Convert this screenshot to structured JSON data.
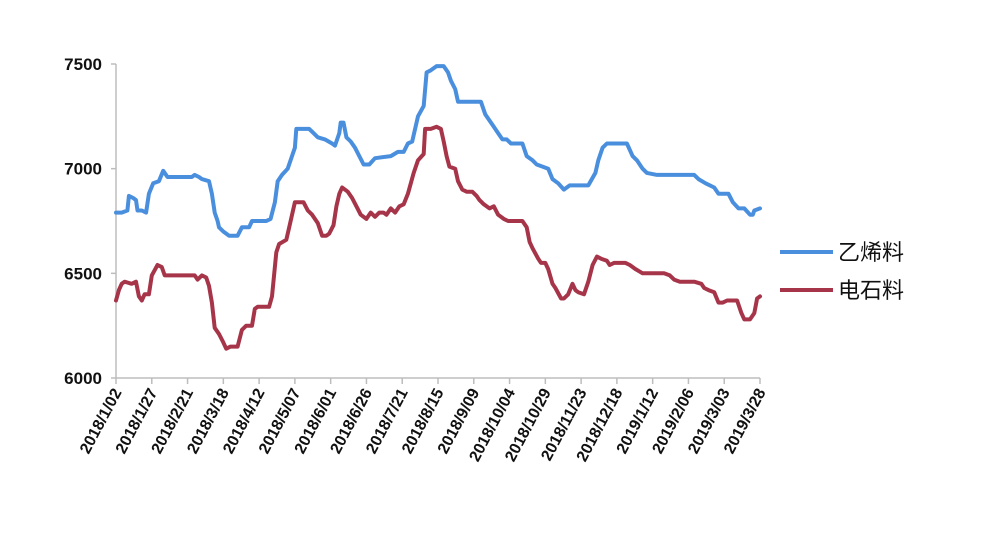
{
  "chart_data": {
    "type": "line",
    "title": "",
    "xlabel": "",
    "ylabel": "",
    "ylim": [
      6000,
      7500
    ],
    "yticks": [
      6000,
      6500,
      7000,
      7500
    ],
    "x_tick_labels": [
      "2018/1/02",
      "2018/1/27",
      "2018/2/21",
      "2018/3/18",
      "2018/4/12",
      "2018/5/07",
      "2018/6/01",
      "2018/6/26",
      "2018/7/21",
      "2018/8/15",
      "2018/9/09",
      "2018/10/04",
      "2018/10/29",
      "2018/11/23",
      "2018/12/18",
      "2019/1/12",
      "2019/2/06",
      "2019/3/03",
      "2019/3/28"
    ],
    "x_range": [
      "2018-01-02",
      "2019-03-28"
    ],
    "grid": false,
    "legend_position": "right",
    "series": [
      {
        "name": "乙烯料",
        "color": "#4a8fde",
        "points": [
          [
            "2018-01-02",
            6790
          ],
          [
            "2018-01-06",
            6790
          ],
          [
            "2018-01-10",
            6800
          ],
          [
            "2018-01-11",
            6870
          ],
          [
            "2018-01-14",
            6860
          ],
          [
            "2018-01-16",
            6850
          ],
          [
            "2018-01-17",
            6800
          ],
          [
            "2018-01-20",
            6800
          ],
          [
            "2018-01-23",
            6790
          ],
          [
            "2018-01-25",
            6880
          ],
          [
            "2018-01-28",
            6930
          ],
          [
            "2018-02-01",
            6940
          ],
          [
            "2018-02-04",
            6990
          ],
          [
            "2018-02-07",
            6960
          ],
          [
            "2018-02-18",
            6960
          ],
          [
            "2018-02-24",
            6960
          ],
          [
            "2018-02-26",
            6970
          ],
          [
            "2018-03-01",
            6960
          ],
          [
            "2018-03-03",
            6950
          ],
          [
            "2018-03-08",
            6940
          ],
          [
            "2018-03-10",
            6880
          ],
          [
            "2018-03-12",
            6790
          ],
          [
            "2018-03-14",
            6750
          ],
          [
            "2018-03-15",
            6720
          ],
          [
            "2018-03-18",
            6700
          ],
          [
            "2018-03-22",
            6680
          ],
          [
            "2018-03-28",
            6680
          ],
          [
            "2018-03-31",
            6720
          ],
          [
            "2018-04-05",
            6720
          ],
          [
            "2018-04-07",
            6750
          ],
          [
            "2018-04-17",
            6750
          ],
          [
            "2018-04-20",
            6760
          ],
          [
            "2018-04-23",
            6840
          ],
          [
            "2018-04-25",
            6940
          ],
          [
            "2018-04-28",
            6970
          ],
          [
            "2018-05-02",
            7000
          ],
          [
            "2018-05-05",
            7060
          ],
          [
            "2018-05-07",
            7100
          ],
          [
            "2018-05-08",
            7190
          ],
          [
            "2018-05-17",
            7190
          ],
          [
            "2018-05-20",
            7170
          ],
          [
            "2018-05-23",
            7150
          ],
          [
            "2018-05-28",
            7140
          ],
          [
            "2018-06-02",
            7120
          ],
          [
            "2018-06-04",
            7110
          ],
          [
            "2018-06-07",
            7170
          ],
          [
            "2018-06-08",
            7220
          ],
          [
            "2018-06-10",
            7220
          ],
          [
            "2018-06-12",
            7150
          ],
          [
            "2018-06-15",
            7130
          ],
          [
            "2018-06-18",
            7100
          ],
          [
            "2018-06-21",
            7060
          ],
          [
            "2018-06-24",
            7020
          ],
          [
            "2018-06-28",
            7020
          ],
          [
            "2018-07-02",
            7050
          ],
          [
            "2018-07-13",
            7060
          ],
          [
            "2018-07-18",
            7080
          ],
          [
            "2018-07-22",
            7080
          ],
          [
            "2018-07-25",
            7120
          ],
          [
            "2018-07-28",
            7130
          ],
          [
            "2018-08-01",
            7250
          ],
          [
            "2018-08-05",
            7300
          ],
          [
            "2018-08-07",
            7460
          ],
          [
            "2018-08-10",
            7470
          ],
          [
            "2018-08-14",
            7490
          ],
          [
            "2018-08-19",
            7490
          ],
          [
            "2018-08-22",
            7460
          ],
          [
            "2018-08-24",
            7420
          ],
          [
            "2018-08-27",
            7380
          ],
          [
            "2018-08-29",
            7320
          ],
          [
            "2018-09-14",
            7320
          ],
          [
            "2018-09-17",
            7260
          ],
          [
            "2018-09-20",
            7230
          ],
          [
            "2018-09-23",
            7200
          ],
          [
            "2018-09-26",
            7170
          ],
          [
            "2018-09-29",
            7140
          ],
          [
            "2018-10-02",
            7140
          ],
          [
            "2018-10-05",
            7120
          ],
          [
            "2018-10-13",
            7120
          ],
          [
            "2018-10-16",
            7060
          ],
          [
            "2018-10-20",
            7040
          ],
          [
            "2018-10-23",
            7020
          ],
          [
            "2018-10-27",
            7010
          ],
          [
            "2018-10-31",
            7000
          ],
          [
            "2018-11-03",
            6950
          ],
          [
            "2018-11-07",
            6930
          ],
          [
            "2018-11-11",
            6900
          ],
          [
            "2018-11-15",
            6920
          ],
          [
            "2018-11-28",
            6920
          ],
          [
            "2018-12-03",
            6980
          ],
          [
            "2018-12-05",
            7040
          ],
          [
            "2018-12-08",
            7100
          ],
          [
            "2018-12-11",
            7120
          ],
          [
            "2018-12-25",
            7120
          ],
          [
            "2018-12-29",
            7060
          ],
          [
            "2019-01-01",
            7040
          ],
          [
            "2019-01-05",
            7000
          ],
          [
            "2019-01-08",
            6980
          ],
          [
            "2019-01-15",
            6970
          ],
          [
            "2019-01-22",
            6970
          ],
          [
            "2019-02-10",
            6970
          ],
          [
            "2019-02-13",
            6950
          ],
          [
            "2019-02-18",
            6930
          ],
          [
            "2019-02-24",
            6910
          ],
          [
            "2019-02-27",
            6880
          ],
          [
            "2019-03-06",
            6880
          ],
          [
            "2019-03-09",
            6840
          ],
          [
            "2019-03-13",
            6810
          ],
          [
            "2019-03-17",
            6810
          ],
          [
            "2019-03-21",
            6780
          ],
          [
            "2019-03-23",
            6780
          ],
          [
            "2019-03-24",
            6800
          ],
          [
            "2019-03-28",
            6810
          ]
        ]
      },
      {
        "name": "电石料",
        "color": "#a73549",
        "points": [
          [
            "2018-01-02",
            6370
          ],
          [
            "2018-01-04",
            6420
          ],
          [
            "2018-01-06",
            6450
          ],
          [
            "2018-01-08",
            6460
          ],
          [
            "2018-01-13",
            6450
          ],
          [
            "2018-01-16",
            6460
          ],
          [
            "2018-01-18",
            6390
          ],
          [
            "2018-01-20",
            6370
          ],
          [
            "2018-01-22",
            6400
          ],
          [
            "2018-01-25",
            6400
          ],
          [
            "2018-01-27",
            6490
          ],
          [
            "2018-01-31",
            6540
          ],
          [
            "2018-02-03",
            6530
          ],
          [
            "2018-02-05",
            6490
          ],
          [
            "2018-02-07",
            6490
          ],
          [
            "2018-02-26",
            6490
          ],
          [
            "2018-02-28",
            6470
          ],
          [
            "2018-03-03",
            6490
          ],
          [
            "2018-03-06",
            6480
          ],
          [
            "2018-03-08",
            6440
          ],
          [
            "2018-03-10",
            6360
          ],
          [
            "2018-03-12",
            6240
          ],
          [
            "2018-03-15",
            6210
          ],
          [
            "2018-03-18",
            6170
          ],
          [
            "2018-03-20",
            6140
          ],
          [
            "2018-03-23",
            6150
          ],
          [
            "2018-03-28",
            6150
          ],
          [
            "2018-03-31",
            6230
          ],
          [
            "2018-04-03",
            6250
          ],
          [
            "2018-04-07",
            6250
          ],
          [
            "2018-04-09",
            6330
          ],
          [
            "2018-04-11",
            6340
          ],
          [
            "2018-04-19",
            6340
          ],
          [
            "2018-04-21",
            6390
          ],
          [
            "2018-04-24",
            6600
          ],
          [
            "2018-04-26",
            6640
          ],
          [
            "2018-05-01",
            6660
          ],
          [
            "2018-05-03",
            6720
          ],
          [
            "2018-05-07",
            6840
          ],
          [
            "2018-05-13",
            6840
          ],
          [
            "2018-05-16",
            6800
          ],
          [
            "2018-05-19",
            6780
          ],
          [
            "2018-05-23",
            6740
          ],
          [
            "2018-05-26",
            6680
          ],
          [
            "2018-05-29",
            6680
          ],
          [
            "2018-05-31",
            6690
          ],
          [
            "2018-06-03",
            6730
          ],
          [
            "2018-06-05",
            6820
          ],
          [
            "2018-06-07",
            6880
          ],
          [
            "2018-06-09",
            6910
          ],
          [
            "2018-06-13",
            6890
          ],
          [
            "2018-06-16",
            6860
          ],
          [
            "2018-06-19",
            6820
          ],
          [
            "2018-06-22",
            6780
          ],
          [
            "2018-06-26",
            6760
          ],
          [
            "2018-06-29",
            6790
          ],
          [
            "2018-07-02",
            6770
          ],
          [
            "2018-07-05",
            6790
          ],
          [
            "2018-07-08",
            6790
          ],
          [
            "2018-07-10",
            6780
          ],
          [
            "2018-07-13",
            6810
          ],
          [
            "2018-07-16",
            6790
          ],
          [
            "2018-07-19",
            6820
          ],
          [
            "2018-07-22",
            6830
          ],
          [
            "2018-07-25",
            6880
          ],
          [
            "2018-07-29",
            6980
          ],
          [
            "2018-08-01",
            7040
          ],
          [
            "2018-08-05",
            7070
          ],
          [
            "2018-08-06",
            7190
          ],
          [
            "2018-08-10",
            7190
          ],
          [
            "2018-08-14",
            7200
          ],
          [
            "2018-08-17",
            7190
          ],
          [
            "2018-08-19",
            7130
          ],
          [
            "2018-08-21",
            7060
          ],
          [
            "2018-08-23",
            7010
          ],
          [
            "2018-08-27",
            7000
          ],
          [
            "2018-08-29",
            6940
          ],
          [
            "2018-09-01",
            6900
          ],
          [
            "2018-09-04",
            6890
          ],
          [
            "2018-09-08",
            6890
          ],
          [
            "2018-09-11",
            6870
          ],
          [
            "2018-09-13",
            6850
          ],
          [
            "2018-09-16",
            6830
          ],
          [
            "2018-09-20",
            6810
          ],
          [
            "2018-09-23",
            6820
          ],
          [
            "2018-09-26",
            6780
          ],
          [
            "2018-09-30",
            6760
          ],
          [
            "2018-10-03",
            6750
          ],
          [
            "2018-10-13",
            6750
          ],
          [
            "2018-10-16",
            6720
          ],
          [
            "2018-10-18",
            6650
          ],
          [
            "2018-10-20",
            6620
          ],
          [
            "2018-10-24",
            6570
          ],
          [
            "2018-10-26",
            6550
          ],
          [
            "2018-10-29",
            6550
          ],
          [
            "2018-10-31",
            6520
          ],
          [
            "2018-11-03",
            6450
          ],
          [
            "2018-11-05",
            6430
          ],
          [
            "2018-11-09",
            6380
          ],
          [
            "2018-11-11",
            6380
          ],
          [
            "2018-11-14",
            6400
          ],
          [
            "2018-11-17",
            6450
          ],
          [
            "2018-11-19",
            6420
          ],
          [
            "2018-11-21",
            6410
          ],
          [
            "2018-11-25",
            6400
          ],
          [
            "2018-11-28",
            6460
          ],
          [
            "2018-12-01",
            6540
          ],
          [
            "2018-12-04",
            6580
          ],
          [
            "2018-12-07",
            6570
          ],
          [
            "2018-12-11",
            6560
          ],
          [
            "2018-12-13",
            6540
          ],
          [
            "2018-12-16",
            6550
          ],
          [
            "2018-12-19",
            6550
          ],
          [
            "2018-12-24",
            6550
          ],
          [
            "2018-12-27",
            6540
          ],
          [
            "2018-12-31",
            6520
          ],
          [
            "2019-01-05",
            6500
          ],
          [
            "2019-01-10",
            6500
          ],
          [
            "2019-01-20",
            6500
          ],
          [
            "2019-01-24",
            6490
          ],
          [
            "2019-01-27",
            6470
          ],
          [
            "2019-01-31",
            6460
          ],
          [
            "2019-02-10",
            6460
          ],
          [
            "2019-02-15",
            6450
          ],
          [
            "2019-02-17",
            6430
          ],
          [
            "2019-02-20",
            6420
          ],
          [
            "2019-02-24",
            6410
          ],
          [
            "2019-02-27",
            6360
          ],
          [
            "2019-03-02",
            6360
          ],
          [
            "2019-03-05",
            6370
          ],
          [
            "2019-03-12",
            6370
          ],
          [
            "2019-03-15",
            6310
          ],
          [
            "2019-03-17",
            6280
          ],
          [
            "2019-03-21",
            6280
          ],
          [
            "2019-03-24",
            6310
          ],
          [
            "2019-03-26",
            6380
          ],
          [
            "2019-03-28",
            6390
          ]
        ]
      }
    ]
  }
}
